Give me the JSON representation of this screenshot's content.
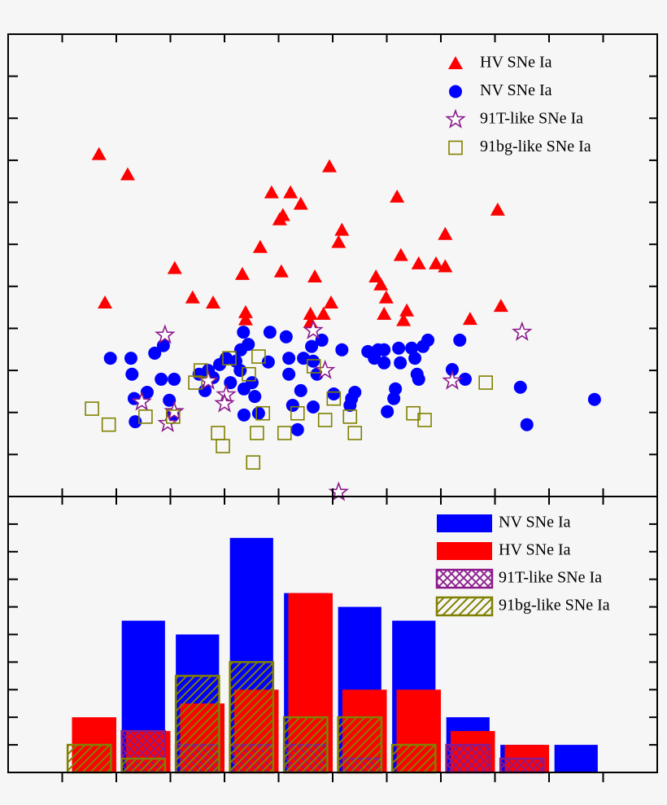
{
  "chart_data": [
    {
      "type": "scatter",
      "xlim": [
        0,
        12
      ],
      "ylim": [
        0,
        11
      ],
      "xticks": [
        1,
        2,
        3,
        4,
        5,
        6,
        7,
        8,
        9,
        10,
        11
      ],
      "yticks": [
        1,
        2,
        3,
        4,
        5,
        6,
        7,
        8,
        9,
        10
      ],
      "legend": "upper right",
      "series": [
        {
          "name": "HV SNe Ia",
          "color": "#ff0000",
          "marker": "triangle",
          "x": [
            1.68,
            2.21,
            1.79,
            3.08,
            3.41,
            3.79,
            4.33,
            4.39,
            4.39,
            4.66,
            4.87,
            5.02,
            5.08,
            5.05,
            5.22,
            5.41,
            5.67,
            5.59,
            5.59,
            5.83,
            5.97,
            5.94,
            6.17,
            6.11,
            6.8,
            6.89,
            6.99,
            6.95,
            7.31,
            7.37,
            7.19,
            7.26,
            7.59,
            7.91,
            8.08,
            8.08,
            8.54,
            9.05,
            9.11
          ],
          "values": [
            8.14,
            7.66,
            4.61,
            5.43,
            4.73,
            4.61,
            5.29,
            4.38,
            4.21,
            5.93,
            7.23,
            6.59,
            6.69,
            5.35,
            7.23,
            6.96,
            5.23,
            4.34,
            4.15,
            4.34,
            4.61,
            7.85,
            6.34,
            6.05,
            5.23,
            5.04,
            4.73,
            4.34,
            4.19,
            4.42,
            7.13,
            5.74,
            5.54,
            5.54,
            5.47,
            6.24,
            4.22,
            6.82,
            4.53
          ]
        },
        {
          "name": "NV SNe Ia",
          "color": "#0000ff",
          "marker": "circle",
          "x": [
            1.89,
            2.27,
            2.29,
            2.33,
            2.35,
            2.57,
            2.71,
            2.87,
            2.83,
            3.07,
            2.98,
            3.05,
            3.53,
            3.64,
            3.7,
            3.79,
            3.91,
            4.03,
            4.11,
            4.21,
            4.3,
            4.35,
            4.36,
            4.29,
            4.36,
            4.44,
            4.51,
            4.56,
            4.63,
            4.84,
            4.81,
            5.14,
            5.19,
            5.19,
            5.26,
            5.35,
            5.41,
            5.46,
            5.61,
            5.64,
            5.64,
            5.71,
            5.8,
            6.02,
            6.17,
            6.32,
            6.35,
            6.41,
            6.65,
            6.77,
            6.84,
            6.95,
            6.95,
            7.01,
            7.16,
            7.13,
            7.22,
            7.25,
            7.46,
            7.52,
            7.56,
            7.59,
            7.67,
            7.76,
            8.21,
            8.35,
            8.45,
            9.47,
            9.59,
            10.84
          ],
          "values": [
            3.29,
            3.29,
            2.91,
            2.33,
            1.78,
            2.48,
            3.41,
            3.59,
            2.79,
            2.79,
            2.29,
            1.94,
            2.91,
            2.52,
            3.0,
            2.83,
            3.14,
            3.29,
            2.71,
            3.22,
            3.49,
            3.91,
            2.56,
            3.0,
            1.94,
            3.62,
            2.71,
            2.38,
            1.98,
            3.91,
            3.2,
            3.8,
            3.29,
            2.91,
            2.17,
            1.59,
            2.52,
            3.29,
            3.57,
            3.22,
            2.13,
            2.91,
            3.72,
            2.44,
            3.49,
            2.17,
            2.33,
            2.48,
            3.45,
            3.29,
            3.49,
            3.49,
            3.18,
            2.02,
            2.56,
            2.33,
            3.53,
            3.18,
            3.53,
            3.29,
            2.91,
            2.79,
            3.57,
            3.72,
            3.02,
            3.72,
            2.79,
            2.6,
            1.71,
            2.31
          ]
        },
        {
          "name": "91T-like SNe Ia",
          "color": "#8b1a8b",
          "marker": "star",
          "x": [
            2.9,
            3.07,
            2.95,
            2.47,
            3.7,
            4.03,
            4.0,
            5.64,
            5.86,
            8.21,
            9.5,
            6.11
          ],
          "values": [
            3.84,
            2.02,
            1.74,
            2.25,
            2.75,
            2.42,
            2.21,
            3.95,
            3.0,
            2.75,
            3.91,
            0.1
          ]
        },
        {
          "name": "91bg-like SNe Ia",
          "color": "#808000",
          "marker": "square",
          "x": [
            1.55,
            1.86,
            2.54,
            3.05,
            3.46,
            3.56,
            3.88,
            3.97,
            4.09,
            4.45,
            4.53,
            4.6,
            4.63,
            4.71,
            5.11,
            5.35,
            5.65,
            5.86,
            6.02,
            6.32,
            6.41,
            7.49,
            7.7,
            8.83
          ],
          "values": [
            2.09,
            1.71,
            1.9,
            1.9,
            2.71,
            3.0,
            1.51,
            1.2,
            3.29,
            2.91,
            0.81,
            1.51,
            3.33,
            1.98,
            1.51,
            1.98,
            3.1,
            1.82,
            2.33,
            1.9,
            1.51,
            1.98,
            1.82,
            2.71
          ]
        }
      ]
    },
    {
      "type": "histogram",
      "xlim": [
        0,
        12
      ],
      "ylim": [
        0,
        20
      ],
      "xticks": [
        1,
        2,
        3,
        4,
        5,
        6,
        7,
        8,
        9,
        10,
        11
      ],
      "yticks": [
        2,
        4,
        6,
        8,
        10,
        12,
        14,
        16,
        18
      ],
      "legend": "upper right",
      "bins": [
        1,
        2,
        3,
        4,
        5,
        6,
        7,
        8,
        9,
        10,
        11
      ],
      "series": [
        {
          "name": "NV SNe Ia",
          "color": "#0000ff",
          "fill": "solid",
          "values": [
            0,
            11,
            10,
            17,
            13,
            12,
            11,
            4,
            2,
            2
          ]
        },
        {
          "name": "HV SNe Ia",
          "color": "#ff0000",
          "fill": "solid",
          "values": [
            4,
            3,
            5,
            6,
            13,
            6,
            6,
            3,
            2,
            0
          ]
        },
        {
          "name": "91T-like SNe Ia",
          "color": "#8b1a8b",
          "fill": "crosshatch",
          "values": [
            0,
            3,
            2,
            2,
            2,
            1,
            0,
            2,
            1,
            0
          ]
        },
        {
          "name": "91bg-like SNe Ia",
          "color": "#808000",
          "fill": "diagonal",
          "values": [
            2,
            1,
            7,
            8,
            4,
            4,
            2,
            0,
            0,
            0
          ]
        }
      ]
    }
  ]
}
